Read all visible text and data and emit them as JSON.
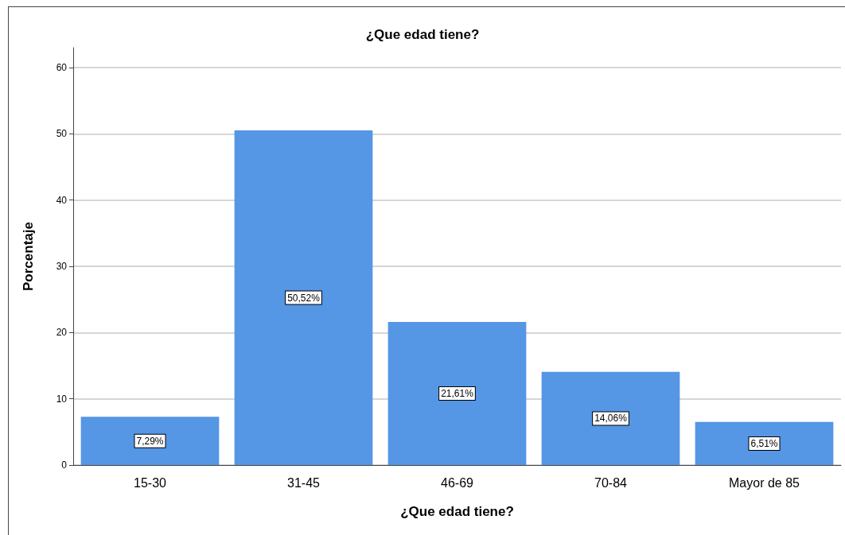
{
  "chart_data": {
    "type": "bar",
    "title": "¿Que edad tiene?",
    "xlabel": "¿Que edad tiene?",
    "ylabel": "Porcentaje",
    "categories": [
      "15-30",
      "31-45",
      "46-69",
      "70-84",
      "Mayor de 85"
    ],
    "values": [
      7.29,
      50.52,
      21.61,
      14.06,
      6.51
    ],
    "value_labels": [
      "7,29%",
      "50,52%",
      "21,61%",
      "14,06%",
      "6,51%"
    ],
    "color": "#5596e5",
    "ylim": [
      0,
      63
    ],
    "yticks": [
      0,
      10,
      20,
      30,
      40,
      50,
      60
    ],
    "grid": "y"
  }
}
